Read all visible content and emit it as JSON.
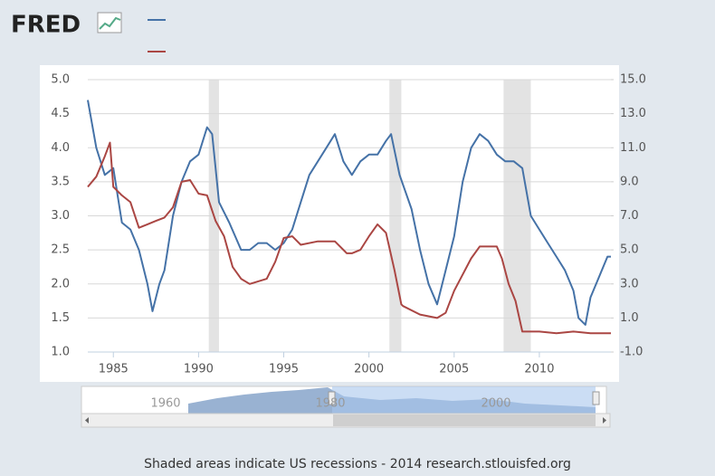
{
  "logo": "FRED",
  "chart_data": {
    "type": "line",
    "xlim": [
      1983.5,
      2014.2
    ],
    "xticks": [
      1985,
      1990,
      1995,
      2000,
      2005,
      2010
    ],
    "ylim": [
      1,
      5
    ],
    "yticks": [
      {
        "value": 1,
        "label": "1.0"
      },
      1.5,
      {
        "value": 2,
        "label": "2.0"
      },
      2.5,
      {
        "value": 3,
        "label": "3.0"
      },
      3.5,
      {
        "value": 4,
        "label": "4.0"
      },
      4.5,
      {
        "value": 5,
        "label": "5.0"
      }
    ],
    "y2lim": [
      -1,
      15
    ],
    "y2ticks": [
      {
        "value": -1,
        "label": "-1.0"
      },
      {
        "value": 1,
        "label": "1.0"
      },
      {
        "value": 3,
        "label": "3.0"
      },
      {
        "value": 5,
        "label": "5.0"
      },
      {
        "value": 7,
        "label": "7.0"
      },
      {
        "value": 9,
        "label": "9.0"
      },
      {
        "value": 11,
        "label": "11.0"
      },
      {
        "value": 13,
        "label": "13.0"
      },
      {
        "value": 15,
        "label": "15.0"
      }
    ],
    "grid": true,
    "recessions": [
      [
        1990.6,
        1991.2
      ],
      [
        2001.2,
        2001.9
      ],
      [
        2007.9,
        2009.5
      ]
    ],
    "series": [
      {
        "color": "#4572a7",
        "axis": "y",
        "x": [
          1983.5,
          1984,
          1984.5,
          1985,
          1985.5,
          1986,
          1986.5,
          1987,
          1987.3,
          1987.7,
          1988,
          1988.5,
          1989,
          1989.5,
          1990,
          1990.5,
          1990.8,
          1991.2,
          1991.8,
          1992.5,
          1993,
          1993.5,
          1994,
          1994.5,
          1995,
          1995.5,
          1996,
          1996.5,
          1997,
          1997.5,
          1998,
          1998.5,
          1999,
          1999.5,
          2000,
          2000.5,
          2001,
          2001.3,
          2001.8,
          2002.5,
          2003,
          2003.5,
          2004,
          2004.5,
          2005,
          2005.5,
          2006,
          2006.5,
          2007,
          2007.5,
          2008,
          2008.5,
          2009,
          2009.5,
          2010,
          2010.5,
          2011,
          2011.5,
          2012,
          2012.3,
          2012.7,
          2013,
          2013.5,
          2014,
          2014.2
        ],
        "values": [
          4.7,
          4.0,
          3.6,
          3.7,
          2.9,
          2.8,
          2.5,
          2.0,
          1.6,
          2.0,
          2.2,
          3.0,
          3.5,
          3.8,
          3.9,
          4.3,
          4.2,
          3.2,
          2.9,
          2.5,
          2.5,
          2.6,
          2.6,
          2.5,
          2.6,
          2.8,
          3.2,
          3.6,
          3.8,
          4.0,
          4.2,
          3.8,
          3.6,
          3.8,
          3.9,
          3.9,
          4.1,
          4.2,
          3.6,
          3.1,
          2.5,
          2.0,
          1.7,
          2.2,
          2.7,
          3.5,
          4.0,
          4.2,
          4.1,
          3.9,
          3.8,
          3.8,
          3.7,
          3.0,
          2.8,
          2.6,
          2.4,
          2.2,
          1.9,
          1.5,
          1.4,
          1.8,
          2.1,
          2.4,
          2.4
        ]
      },
      {
        "color": "#aa4643",
        "axis": "y2",
        "x": [
          1983.5,
          1984,
          1984.5,
          1984.8,
          1985,
          1985.5,
          1986,
          1986.5,
          1987,
          1987.5,
          1988,
          1988.5,
          1989,
          1989.5,
          1990,
          1990.5,
          1991,
          1991.5,
          1992,
          1992.5,
          1993,
          1994,
          1994.5,
          1995,
          1995.5,
          1996,
          1997,
          1998,
          1998.7,
          1999,
          1999.5,
          2000,
          2000.5,
          2001,
          2001.5,
          2001.9,
          2002,
          2003,
          2004,
          2004.5,
          2005,
          2006,
          2006.5,
          2007.5,
          2007.8,
          2008.2,
          2008.6,
          2009,
          2010,
          2011,
          2012,
          2013,
          2014.2
        ],
        "values": [
          8.7,
          9.3,
          10.5,
          11.3,
          8.7,
          8.2,
          7.8,
          6.3,
          6.5,
          6.7,
          6.9,
          7.5,
          9.0,
          9.1,
          8.3,
          8.2,
          6.7,
          5.8,
          4.0,
          3.3,
          3.0,
          3.3,
          4.3,
          5.7,
          5.8,
          5.3,
          5.5,
          5.5,
          4.8,
          4.8,
          5.0,
          5.8,
          6.5,
          6.0,
          3.8,
          1.8,
          1.7,
          1.2,
          1.0,
          1.3,
          2.6,
          4.5,
          5.2,
          5.2,
          4.5,
          3.0,
          2.0,
          0.2,
          0.2,
          0.1,
          0.2,
          0.1,
          0.1
        ]
      }
    ]
  },
  "navigator": {
    "labels": [
      "1960",
      "1980",
      "2000"
    ]
  },
  "footer": "Shaded areas indicate US recessions - 2014 research.stlouisfed.org"
}
